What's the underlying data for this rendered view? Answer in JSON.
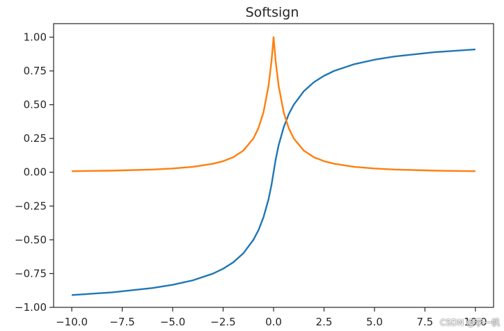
{
  "chart_data": {
    "type": "line",
    "title": "Softsign",
    "xlabel": "",
    "ylabel": "",
    "xlim": [
      -10.9,
      10.9
    ],
    "ylim": [
      -1.0,
      1.1
    ],
    "x_ticks": [
      "−10.0",
      "−7.5",
      "−5.0",
      "−2.5",
      "0.0",
      "2.5",
      "5.0",
      "7.5",
      "10.0"
    ],
    "x_tick_values": [
      -10,
      -7.5,
      -5,
      -2.5,
      0,
      2.5,
      5,
      7.5,
      10
    ],
    "y_ticks": [
      "1.00",
      "0.75",
      "0.50",
      "0.25",
      "0.00",
      "−0.25",
      "−0.50",
      "−0.75",
      "−1.00"
    ],
    "y_tick_values": [
      1.0,
      0.75,
      0.5,
      0.25,
      0.0,
      -0.25,
      -0.5,
      -0.75,
      -1.0
    ],
    "grid": false,
    "x": [
      -10,
      -8,
      -6,
      -5,
      -4,
      -3,
      -2.5,
      -2,
      -1.5,
      -1,
      -0.75,
      -0.5,
      -0.25,
      -0.1,
      0,
      0.1,
      0.25,
      0.5,
      0.75,
      1,
      1.5,
      2,
      2.5,
      3,
      4,
      5,
      6,
      8,
      10
    ],
    "series": [
      {
        "color": "#1f77b4",
        "values": [
          -0.909,
          -0.889,
          -0.857,
          -0.833,
          -0.8,
          -0.75,
          -0.714,
          -0.667,
          -0.6,
          -0.5,
          -0.429,
          -0.333,
          -0.2,
          -0.091,
          0.0,
          0.091,
          0.2,
          0.333,
          0.429,
          0.5,
          0.6,
          0.667,
          0.714,
          0.75,
          0.8,
          0.833,
          0.857,
          0.889,
          0.909
        ]
      },
      {
        "color": "#ff7f0e",
        "values": [
          0.008,
          0.012,
          0.02,
          0.028,
          0.04,
          0.063,
          0.082,
          0.111,
          0.16,
          0.25,
          0.327,
          0.444,
          0.64,
          0.826,
          1.0,
          0.826,
          0.64,
          0.444,
          0.327,
          0.25,
          0.16,
          0.111,
          0.082,
          0.063,
          0.04,
          0.028,
          0.02,
          0.012,
          0.008
        ]
      }
    ]
  },
  "watermark": "CSDN @李一帆"
}
